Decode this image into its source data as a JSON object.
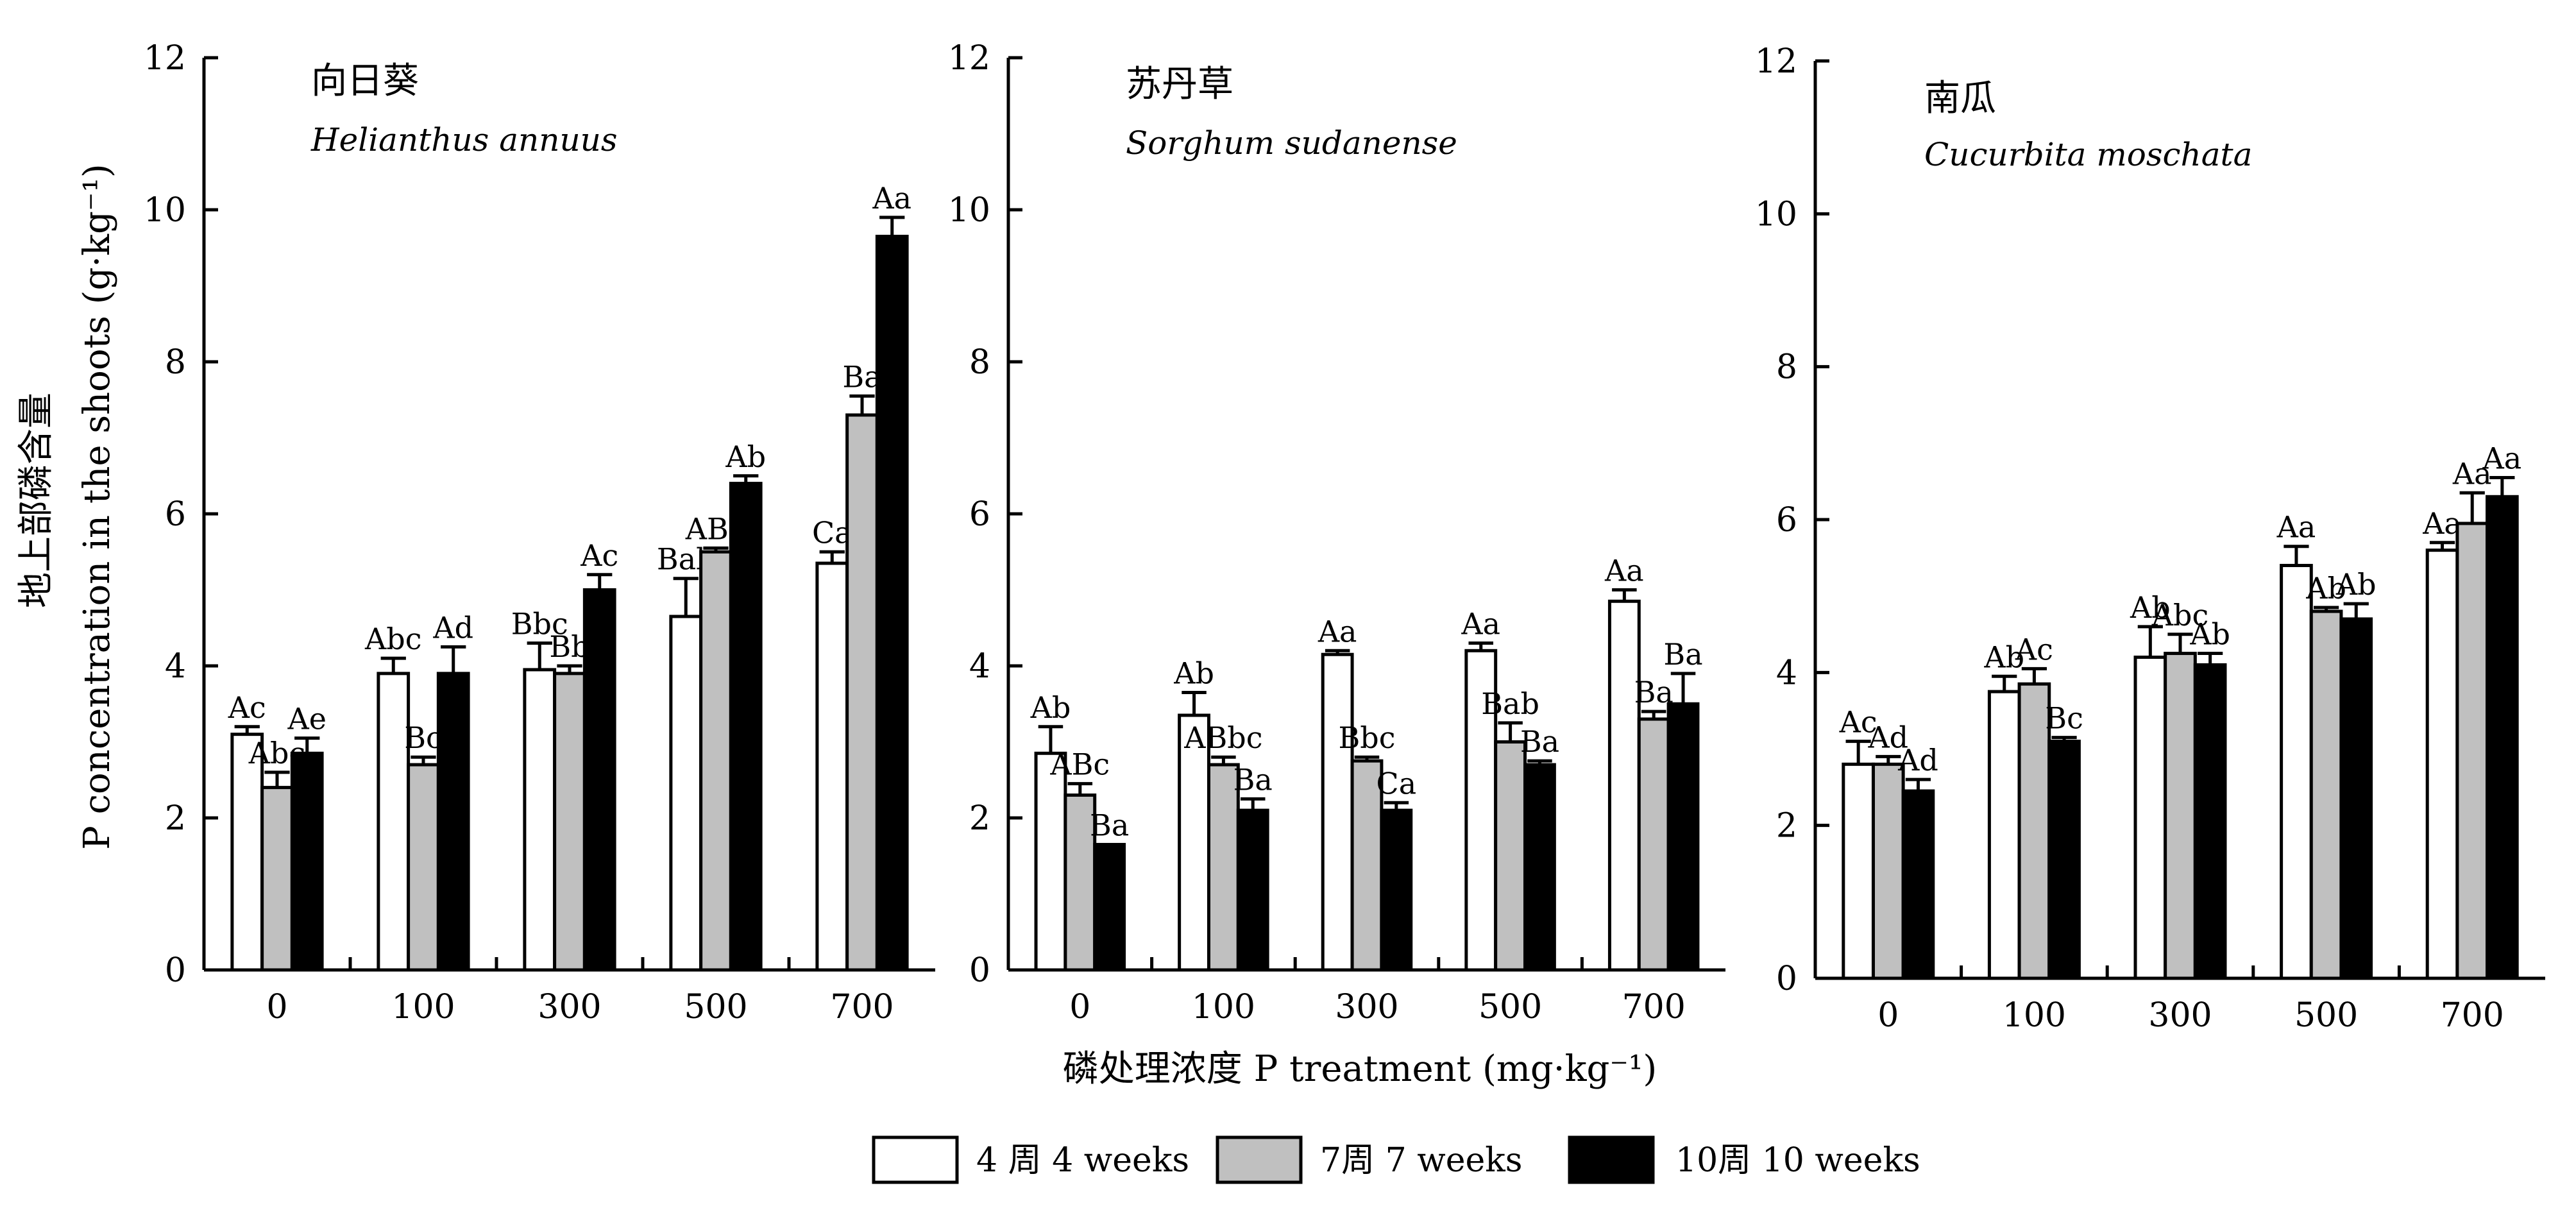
{
  "colors": {
    "week4": "#ffffff",
    "week7": "#c0c0c0",
    "week10": "#000000",
    "stroke": "#000000"
  },
  "axis": {
    "ylabel_zh": "地上部磷含量",
    "ylabel_en": "P concentration in the shoots (g·kg⁻¹)",
    "xlabel": "磷处理浓度 P treatment (mg·kg⁻¹)"
  },
  "legend": {
    "items": [
      {
        "label": "4 周 4 weeks",
        "color": "#ffffff"
      },
      {
        "label": "7周  7 weeks",
        "color": "#c0c0c0"
      },
      {
        "label": "10周  10 weeks",
        "color": "#000000"
      }
    ]
  },
  "chart_data": [
    {
      "type": "bar",
      "title_zh": "向日葵",
      "title_species": "Helianthus annuus",
      "categories": [
        "0",
        "100",
        "300",
        "500",
        "700"
      ],
      "ylim": [
        0,
        12
      ],
      "yticks": [
        "0",
        "2",
        "4",
        "6",
        "8",
        "10",
        "12"
      ],
      "series": [
        {
          "name": "4 周 4 weeks",
          "values": [
            3.1,
            3.9,
            3.95,
            4.65,
            5.35
          ],
          "errors": [
            0.1,
            0.2,
            0.35,
            0.5,
            0.15
          ],
          "labels": [
            "Ac",
            "Abc",
            "Bbc",
            "Bab",
            "Ca"
          ]
        },
        {
          "name": "7周  7 weeks",
          "values": [
            2.4,
            2.7,
            3.9,
            5.5,
            7.3
          ],
          "errors": [
            0.2,
            0.1,
            0.1,
            0.05,
            0.25
          ],
          "labels": [
            "Abc",
            "Bc",
            "Bb",
            "ABa",
            "Ba"
          ]
        },
        {
          "name": "10周  10 weeks",
          "values": [
            2.85,
            3.9,
            5.0,
            6.4,
            9.65
          ],
          "errors": [
            0.2,
            0.35,
            0.2,
            0.1,
            0.25
          ],
          "labels": [
            "Ae",
            "Ad",
            "Ac",
            "Ab",
            "Aa"
          ]
        }
      ]
    },
    {
      "type": "bar",
      "title_zh": "苏丹草",
      "title_species": "Sorghum sudanense",
      "categories": [
        "0",
        "100",
        "300",
        "500",
        "700"
      ],
      "ylim": [
        0,
        12
      ],
      "yticks": [
        "0",
        "2",
        "4",
        "6",
        "8",
        "10",
        "12"
      ],
      "series": [
        {
          "name": "4 周 4 weeks",
          "values": [
            2.85,
            3.35,
            4.15,
            4.2,
            4.85
          ],
          "errors": [
            0.35,
            0.3,
            0.05,
            0.1,
            0.15
          ],
          "labels": [
            "Ab",
            "Ab",
            "Aa",
            "Aa",
            "Aa"
          ]
        },
        {
          "name": "7周  7 weeks",
          "values": [
            2.3,
            2.7,
            2.75,
            3.0,
            3.3
          ],
          "errors": [
            0.15,
            0.1,
            0.05,
            0.25,
            0.1
          ],
          "labels": [
            "ABc",
            "ABbc",
            "Bbc",
            "Bab",
            "Ba"
          ]
        },
        {
          "name": "10周  10 weeks",
          "values": [
            1.65,
            2.1,
            2.1,
            2.7,
            3.5
          ],
          "errors": [
            0.0,
            0.15,
            0.1,
            0.05,
            0.4
          ],
          "labels": [
            "Ba",
            "Ba",
            "Ca",
            "Ba",
            "Ba"
          ]
        }
      ]
    },
    {
      "type": "bar",
      "title_zh": "南瓜",
      "title_species": "Cucurbita moschata",
      "categories": [
        "0",
        "100",
        "300",
        "500",
        "700"
      ],
      "ylim": [
        0,
        12
      ],
      "yticks": [
        "0",
        "2",
        "4",
        "6",
        "8",
        "10",
        "12"
      ],
      "series": [
        {
          "name": "4 周 4 weeks",
          "values": [
            2.8,
            3.75,
            4.2,
            5.4,
            5.6
          ],
          "errors": [
            0.3,
            0.2,
            0.4,
            0.25,
            0.1
          ],
          "labels": [
            "Ac",
            "Ab",
            "Ab",
            "Aa",
            "Aa"
          ]
        },
        {
          "name": "7周  7 weeks",
          "values": [
            2.8,
            3.85,
            4.25,
            4.8,
            5.95
          ],
          "errors": [
            0.1,
            0.2,
            0.25,
            0.05,
            0.4
          ],
          "labels": [
            "Ad",
            "Ac",
            "Abc",
            "Ab",
            "Aa"
          ]
        },
        {
          "name": "10周  10 weeks",
          "values": [
            2.45,
            3.1,
            4.1,
            4.7,
            6.3
          ],
          "errors": [
            0.15,
            0.05,
            0.15,
            0.2,
            0.25
          ],
          "labels": [
            "Ad",
            "Bc",
            "Ab",
            "Ab",
            "Aa"
          ]
        }
      ]
    }
  ]
}
